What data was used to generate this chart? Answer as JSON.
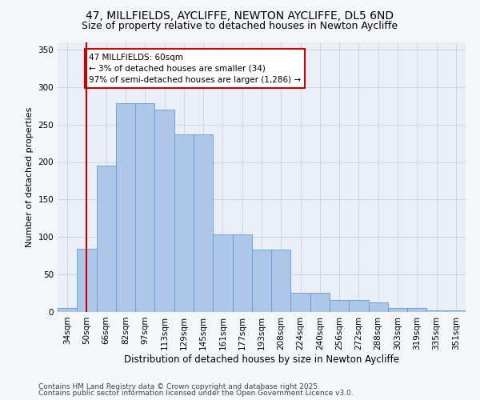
{
  "title1": "47, MILLFIELDS, AYCLIFFE, NEWTON AYCLIFFE, DL5 6ND",
  "title2": "Size of property relative to detached houses in Newton Aycliffe",
  "xlabel": "Distribution of detached houses by size in Newton Aycliffe",
  "ylabel": "Number of detached properties",
  "categories": [
    "34sqm",
    "50sqm",
    "66sqm",
    "82sqm",
    "97sqm",
    "113sqm",
    "129sqm",
    "145sqm",
    "161sqm",
    "177sqm",
    "193sqm",
    "208sqm",
    "224sqm",
    "240sqm",
    "256sqm",
    "272sqm",
    "288sqm",
    "303sqm",
    "319sqm",
    "335sqm",
    "351sqm"
  ],
  "bar_values": [
    5,
    84,
    195,
    278,
    278,
    270,
    237,
    237,
    104,
    104,
    83,
    83,
    26,
    26,
    16,
    16,
    13,
    5,
    5,
    2,
    2
  ],
  "bar_color": "#aec6e8",
  "bar_edge_color": "#5a9fd4",
  "vline_color": "#cc0000",
  "vline_pos": 1.5,
  "annotation_text": "47 MILLFIELDS: 60sqm\n← 3% of detached houses are smaller (34)\n97% of semi-detached houses are larger (1,286) →",
  "annotation_box_facecolor": "#ffffff",
  "annotation_box_edgecolor": "#cc0000",
  "ylim": [
    0,
    360
  ],
  "yticks": [
    0,
    50,
    100,
    150,
    200,
    250,
    300,
    350
  ],
  "grid_color": "#cdd5e0",
  "bg_color": "#eaeff7",
  "fig_facecolor": "#f4f6fa",
  "footer1": "Contains HM Land Registry data © Crown copyright and database right 2025.",
  "footer2": "Contains public sector information licensed under the Open Government Licence v3.0.",
  "title1_fontsize": 10,
  "title2_fontsize": 9,
  "xlabel_fontsize": 8.5,
  "ylabel_fontsize": 8,
  "tick_fontsize": 7.5,
  "annotation_fontsize": 7.5,
  "footer_fontsize": 6.5
}
